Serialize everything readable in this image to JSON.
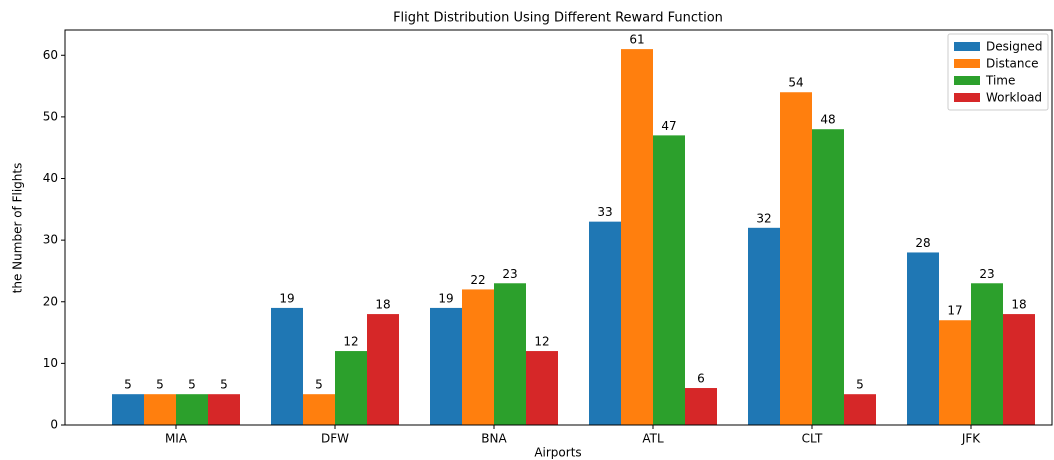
{
  "chart_data": {
    "type": "bar",
    "title": "Flight Distribution Using Different Reward Function",
    "xlabel": "Airports",
    "ylabel": "the Number of Flights",
    "categories": [
      "MIA",
      "DFW",
      "BNA",
      "ATL",
      "CLT",
      "JFK"
    ],
    "series": [
      {
        "name": "Designed",
        "color": "#1f77b4",
        "values": [
          5,
          19,
          19,
          33,
          32,
          28
        ]
      },
      {
        "name": "Distance",
        "color": "#ff7f0e",
        "values": [
          5,
          5,
          22,
          61,
          54,
          17
        ]
      },
      {
        "name": "Time",
        "color": "#2ca02c",
        "values": [
          5,
          12,
          23,
          47,
          48,
          23
        ]
      },
      {
        "name": "Workload",
        "color": "#d62728",
        "values": [
          5,
          18,
          12,
          6,
          5,
          18
        ]
      }
    ],
    "ylim": [
      0,
      64.1
    ],
    "yticks": [
      0,
      10,
      20,
      30,
      40,
      50,
      60
    ],
    "legend": "upper right",
    "grid": false
  }
}
